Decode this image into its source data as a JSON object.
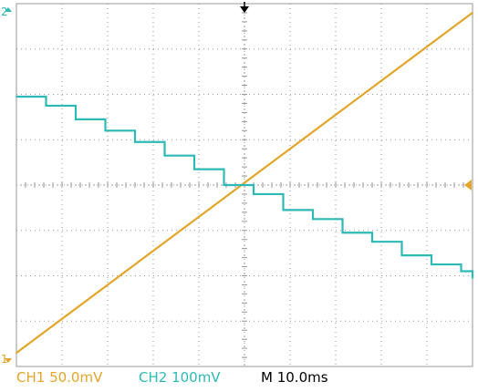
{
  "chart_data": {
    "type": "line",
    "title": "",
    "xlabel": "",
    "ylabel": "",
    "grid": true,
    "x_divisions": 10,
    "y_divisions": 8,
    "xlim": [
      0,
      100
    ],
    "trigger_label": "T",
    "series": [
      {
        "name": "CH1",
        "color": "#e3a52a",
        "marker_label": "1",
        "shape": "ramp",
        "x": [
          0,
          10,
          20,
          30,
          40,
          50,
          60,
          70,
          80,
          90,
          100
        ],
        "y": [
          -3.7,
          -2.95,
          -2.2,
          -1.45,
          -0.7,
          0.05,
          0.8,
          1.55,
          2.3,
          3.05,
          3.8
        ]
      },
      {
        "name": "CH2",
        "color": "#2db9b6",
        "marker_label": "2",
        "shape": "staircase",
        "x": [
          0,
          6.5,
          13,
          19.5,
          26,
          32.5,
          39,
          45.5,
          52,
          58.5,
          65,
          71.5,
          78,
          84.5,
          91,
          97.5,
          100
        ],
        "y": [
          1.95,
          1.75,
          1.45,
          1.2,
          0.95,
          0.65,
          0.35,
          0.0,
          -0.2,
          -0.55,
          -0.75,
          -1.05,
          -1.25,
          -1.55,
          -1.75,
          -1.9,
          -2.05
        ]
      }
    ]
  },
  "status": {
    "ch1": "CH1  50.0mV",
    "ch2": "CH2  100mV",
    "timebase": "M 10.0ms"
  },
  "colors": {
    "ch1": "#e3a52a",
    "ch2": "#2db9b6",
    "grid": "#9a9a9a",
    "text": "#000000"
  }
}
